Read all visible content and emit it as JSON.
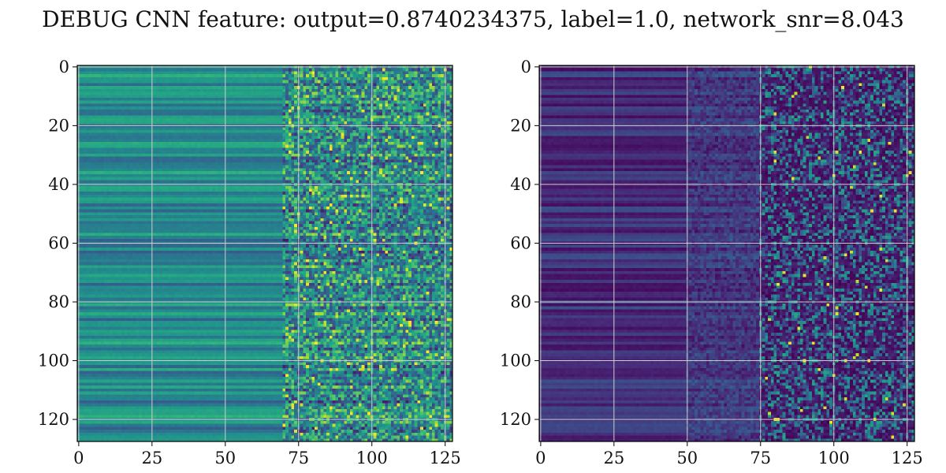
{
  "title": "DEBUG CNN feature: output=0.8740234375, label=1.0, network_snr=8.043",
  "chart_data": [
    {
      "type": "heatmap",
      "colormap": "viridis",
      "rows": 128,
      "cols": 128,
      "xlim": [
        0,
        127
      ],
      "ylim": [
        127,
        0
      ],
      "xticks": [
        0,
        25,
        50,
        75,
        100,
        125
      ],
      "yticks": [
        0,
        20,
        40,
        60,
        80,
        100,
        120
      ],
      "grid": true,
      "value_range": [
        0,
        1
      ]
    },
    {
      "type": "heatmap",
      "colormap": "viridis",
      "rows": 128,
      "cols": 128,
      "xlim": [
        0,
        127
      ],
      "ylim": [
        127,
        0
      ],
      "xticks": [
        0,
        25,
        50,
        75,
        100,
        125
      ],
      "yticks": [
        0,
        20,
        40,
        60,
        80,
        100,
        120
      ],
      "grid": true,
      "value_range": [
        0,
        1
      ]
    }
  ]
}
